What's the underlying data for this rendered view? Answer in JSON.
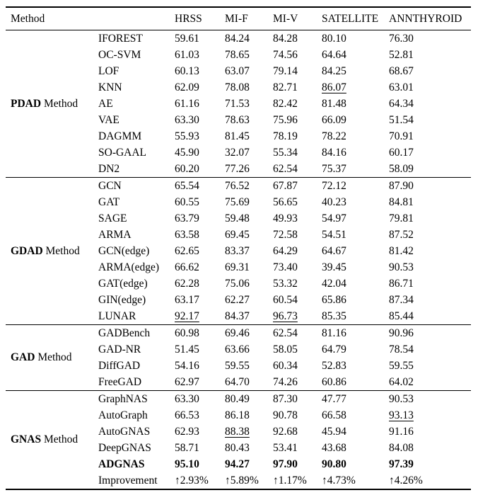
{
  "table": {
    "header": {
      "method_label": "Method",
      "value_columns": [
        "HRSS",
        "MI-F",
        "MI-V",
        "SATELLITE",
        "ANNTHYROID"
      ]
    },
    "groups": [
      {
        "name_bold": "PDAD",
        "name_rest": "Method",
        "rows": [
          {
            "method": "IFOREST",
            "values": [
              "59.61",
              "84.24",
              "84.28",
              "80.10",
              "76.30"
            ]
          },
          {
            "method": "OC-SVM",
            "values": [
              "61.03",
              "78.65",
              "74.56",
              "64.64",
              "52.81"
            ]
          },
          {
            "method": "LOF",
            "values": [
              "60.13",
              "63.07",
              "79.14",
              "84.25",
              "68.67"
            ]
          },
          {
            "method": "KNN",
            "values": [
              "62.09",
              "78.08",
              "82.71",
              "86.07",
              "63.01"
            ],
            "underline": [
              3
            ]
          },
          {
            "method": "AE",
            "values": [
              "61.16",
              "71.53",
              "82.42",
              "81.48",
              "64.34"
            ]
          },
          {
            "method": "VAE",
            "values": [
              "63.30",
              "78.63",
              "75.96",
              "66.09",
              "51.54"
            ]
          },
          {
            "method": "DAGMM",
            "values": [
              "55.93",
              "81.45",
              "78.19",
              "78.22",
              "70.91"
            ]
          },
          {
            "method": "SO-GAAL",
            "values": [
              "45.90",
              "32.07",
              "55.34",
              "84.16",
              "60.17"
            ]
          },
          {
            "method": "DN2",
            "values": [
              "60.20",
              "77.26",
              "62.54",
              "75.37",
              "58.09"
            ]
          }
        ]
      },
      {
        "name_bold": "GDAD",
        "name_rest": "Method",
        "rows": [
          {
            "method": "GCN",
            "values": [
              "65.54",
              "76.52",
              "67.87",
              "72.12",
              "87.90"
            ]
          },
          {
            "method": "GAT",
            "values": [
              "60.55",
              "75.69",
              "56.65",
              "40.23",
              "84.81"
            ]
          },
          {
            "method": "SAGE",
            "values": [
              "63.79",
              "59.48",
              "49.93",
              "54.97",
              "79.81"
            ]
          },
          {
            "method": "ARMA",
            "values": [
              "63.58",
              "69.45",
              "72.58",
              "54.51",
              "87.52"
            ]
          },
          {
            "method": "GCN(edge)",
            "values": [
              "62.65",
              "83.37",
              "64.29",
              "64.67",
              "81.42"
            ]
          },
          {
            "method": "ARMA(edge)",
            "values": [
              "66.62",
              "69.31",
              "73.40",
              "39.45",
              "90.53"
            ]
          },
          {
            "method": "GAT(edge)",
            "values": [
              "62.28",
              "75.06",
              "53.32",
              "42.04",
              "86.71"
            ]
          },
          {
            "method": "GIN(edge)",
            "values": [
              "63.17",
              "62.27",
              "60.54",
              "65.86",
              "87.34"
            ]
          },
          {
            "method": "LUNAR",
            "values": [
              "92.17",
              "84.37",
              "96.73",
              "85.35",
              "85.44"
            ],
            "underline": [
              0,
              2
            ]
          }
        ]
      },
      {
        "name_bold": "GAD",
        "name_rest": "Method",
        "rows": [
          {
            "method": "GADBench",
            "values": [
              "60.98",
              "69.46",
              "62.54",
              "81.16",
              "90.96"
            ]
          },
          {
            "method": "GAD-NR",
            "values": [
              "51.45",
              "63.66",
              "58.05",
              "64.79",
              "78.54"
            ]
          },
          {
            "method": "DiffGAD",
            "values": [
              "54.16",
              "59.55",
              "60.34",
              "52.83",
              "59.55"
            ]
          },
          {
            "method": "FreeGAD",
            "values": [
              "62.97",
              "64.70",
              "74.26",
              "60.86",
              "64.02"
            ]
          }
        ]
      },
      {
        "name_bold": "GNAS",
        "name_rest": "Method",
        "rows": [
          {
            "method": "GraphNAS",
            "values": [
              "63.30",
              "80.49",
              "87.30",
              "47.77",
              "90.53"
            ]
          },
          {
            "method": "AutoGraph",
            "values": [
              "66.53",
              "86.18",
              "90.78",
              "66.58",
              "93.13"
            ],
            "underline": [
              4
            ]
          },
          {
            "method": "AutoGNAS",
            "values": [
              "62.93",
              "88.38",
              "92.68",
              "45.94",
              "91.16"
            ],
            "underline": [
              1
            ]
          },
          {
            "method": "DeepGNAS",
            "values": [
              "58.71",
              "80.43",
              "53.41",
              "43.68",
              "84.08"
            ]
          },
          {
            "method": "ADGNAS",
            "values": [
              "95.10",
              "94.27",
              "97.90",
              "90.80",
              "97.39"
            ],
            "bold": true
          },
          {
            "method": "Improvement",
            "values": [
              "↑2.93%",
              "↑5.89%",
              "↑1.17%",
              "↑4.73%",
              "↑4.26%"
            ]
          }
        ]
      }
    ]
  }
}
